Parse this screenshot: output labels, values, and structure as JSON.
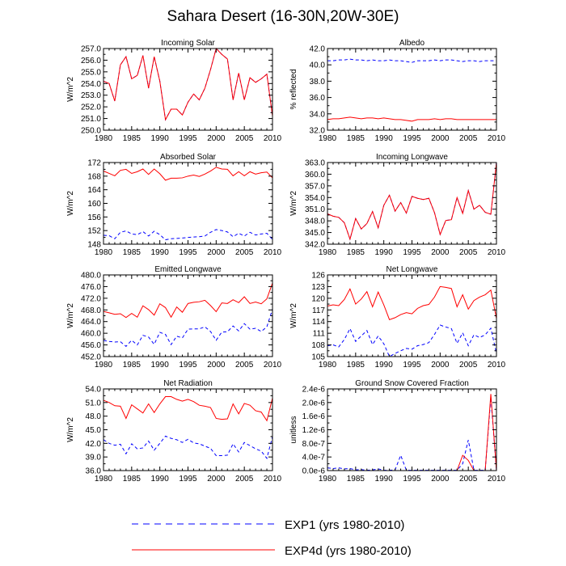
{
  "title": "Sahara Desert (16-30N,20W-30E)",
  "colors": {
    "exp1": "#0000ff",
    "exp4d": "#ff0000",
    "axis": "#000000"
  },
  "legend": [
    {
      "label": "EXP1 (yrs 1980-2010)",
      "style": "dashed",
      "color": "#0000ff"
    },
    {
      "label": "EXP4d (yrs 1980-2010)",
      "style": "solid",
      "color": "#ff0000"
    }
  ],
  "chart_data": [
    {
      "type": "line",
      "title": "Incoming Solar",
      "xlabel": "",
      "ylabel": "W/m^2",
      "xlim": [
        1980,
        2010
      ],
      "ylim": [
        250,
        257
      ],
      "xticks": [
        1980,
        1985,
        1990,
        1995,
        2000,
        2005,
        2010
      ],
      "yticks": [
        250,
        251,
        252,
        253,
        254,
        255,
        256,
        257
      ],
      "ytick_labels": [
        "250.0",
        "251.0",
        "252.0",
        "253.0",
        "254.0",
        "255.0",
        "256.0",
        "257.0"
      ],
      "x": [
        1980,
        1981,
        1982,
        1983,
        1984,
        1985,
        1986,
        1987,
        1988,
        1989,
        1990,
        1991,
        1992,
        1993,
        1994,
        1995,
        1996,
        1997,
        1998,
        1999,
        2000,
        2001,
        2002,
        2003,
        2004,
        2005,
        2006,
        2007,
        2008,
        2009,
        2010
      ],
      "series": [
        {
          "name": "EXP1",
          "values": [
            254.2,
            254.0,
            252.5,
            255.6,
            256.3,
            254.4,
            254.7,
            256.4,
            253.6,
            256.3,
            254.2,
            250.9,
            251.8,
            251.8,
            251.3,
            252.4,
            253.1,
            252.6,
            253.6,
            255.2,
            257.0,
            256.5,
            256.1,
            252.6,
            254.9,
            252.6,
            254.5,
            254.1,
            254.4,
            254.8,
            251.2
          ]
        },
        {
          "name": "EXP4d",
          "values": [
            254.2,
            254.0,
            252.5,
            255.6,
            256.3,
            254.4,
            254.7,
            256.4,
            253.6,
            256.3,
            254.2,
            250.9,
            251.8,
            251.8,
            251.3,
            252.4,
            253.1,
            252.6,
            253.6,
            255.2,
            257.0,
            256.5,
            256.1,
            252.6,
            254.9,
            252.6,
            254.5,
            254.1,
            254.4,
            254.8,
            251.2
          ]
        }
      ]
    },
    {
      "type": "line",
      "title": "Albedo",
      "xlabel": "",
      "ylabel": "% reflected",
      "xlim": [
        1980,
        2010
      ],
      "ylim": [
        32,
        42
      ],
      "xticks": [
        1980,
        1985,
        1990,
        1995,
        2000,
        2005,
        2010
      ],
      "yticks": [
        32,
        34,
        36,
        38,
        40,
        42
      ],
      "ytick_labels": [
        "32.0",
        "34.0",
        "36.0",
        "38.0",
        "40.0",
        "42.0"
      ],
      "x": [
        1980,
        1981,
        1982,
        1983,
        1984,
        1985,
        1986,
        1987,
        1988,
        1989,
        1990,
        1991,
        1992,
        1993,
        1994,
        1995,
        1996,
        1997,
        1998,
        1999,
        2000,
        2001,
        2002,
        2003,
        2004,
        2005,
        2006,
        2007,
        2008,
        2009,
        2010
      ],
      "series": [
        {
          "name": "EXP1",
          "values": [
            40.5,
            40.5,
            40.6,
            40.6,
            40.7,
            40.6,
            40.6,
            40.5,
            40.6,
            40.5,
            40.5,
            40.6,
            40.5,
            40.5,
            40.4,
            40.3,
            40.5,
            40.5,
            40.5,
            40.6,
            40.5,
            40.6,
            40.6,
            40.5,
            40.4,
            40.5,
            40.5,
            40.4,
            40.5,
            40.5,
            40.5
          ]
        },
        {
          "name": "EXP4d",
          "values": [
            33.3,
            33.4,
            33.4,
            33.5,
            33.6,
            33.5,
            33.4,
            33.5,
            33.5,
            33.4,
            33.5,
            33.4,
            33.3,
            33.3,
            33.2,
            33.1,
            33.3,
            33.3,
            33.3,
            33.4,
            33.3,
            33.4,
            33.4,
            33.3,
            33.3,
            33.3,
            33.3,
            33.3,
            33.3,
            33.3,
            33.3
          ]
        }
      ]
    },
    {
      "type": "line",
      "title": "Absorbed Solar",
      "xlabel": "",
      "ylabel": "W/m^2",
      "xlim": [
        1980,
        2010
      ],
      "ylim": [
        148,
        172
      ],
      "xticks": [
        1980,
        1985,
        1990,
        1995,
        2000,
        2005,
        2010
      ],
      "yticks": [
        148,
        152,
        156,
        160,
        164,
        168,
        172
      ],
      "ytick_labels": [
        "148",
        "152",
        "156",
        "160",
        "164",
        "168",
        "172"
      ],
      "x": [
        1980,
        1981,
        1982,
        1983,
        1984,
        1985,
        1986,
        1987,
        1988,
        1989,
        1990,
        1991,
        1992,
        1993,
        1994,
        1995,
        1996,
        1997,
        1998,
        1999,
        2000,
        2001,
        2002,
        2003,
        2004,
        2005,
        2006,
        2007,
        2008,
        2009,
        2010
      ],
      "series": [
        {
          "name": "EXP1",
          "values": [
            150.6,
            150.5,
            149.6,
            151.5,
            151.9,
            151.0,
            150.8,
            151.7,
            150.4,
            151.8,
            150.8,
            149.3,
            149.6,
            149.7,
            149.8,
            150.0,
            150.1,
            150.2,
            150.4,
            151.5,
            152.3,
            152.0,
            151.6,
            150.2,
            151.2,
            150.4,
            151.5,
            150.7,
            151.0,
            151.2,
            149.4
          ]
        },
        {
          "name": "EXP4d",
          "values": [
            169.5,
            168.8,
            168.1,
            169.7,
            170.0,
            168.8,
            169.3,
            170.1,
            168.5,
            170.1,
            168.7,
            166.8,
            167.4,
            167.4,
            167.5,
            168.0,
            168.3,
            167.9,
            168.6,
            169.5,
            170.6,
            170.1,
            170.0,
            168.1,
            169.3,
            168.1,
            169.3,
            168.6,
            169.0,
            169.2,
            167.5
          ]
        }
      ]
    },
    {
      "type": "line",
      "title": "Incoming Longwave",
      "xlabel": "",
      "ylabel": "W/m^2",
      "xlim": [
        1980,
        2010
      ],
      "ylim": [
        342,
        363
      ],
      "xticks": [
        1980,
        1985,
        1990,
        1995,
        2000,
        2005,
        2010
      ],
      "yticks": [
        342,
        345,
        348,
        351,
        354,
        357,
        360,
        363
      ],
      "ytick_labels": [
        "342.0",
        "345.0",
        "348.0",
        "351.0",
        "354.0",
        "357.0",
        "360.0",
        "363.0"
      ],
      "x": [
        1980,
        1981,
        1982,
        1983,
        1984,
        1985,
        1986,
        1987,
        1988,
        1989,
        1990,
        1991,
        1992,
        1993,
        1994,
        1995,
        1996,
        1997,
        1998,
        1999,
        2000,
        2001,
        2002,
        2003,
        2004,
        2005,
        2006,
        2007,
        2008,
        2009,
        2010
      ],
      "series": [
        {
          "name": "EXP1",
          "values": [
            349.8,
            349.2,
            348.9,
            347.5,
            343.3,
            348.6,
            345.9,
            347.3,
            350.4,
            346.2,
            352.0,
            354.6,
            350.5,
            352.7,
            350.0,
            354.3,
            353.8,
            353.5,
            353.8,
            350.1,
            344.5,
            348.1,
            348.3,
            354.0,
            349.9,
            355.8,
            351.0,
            352.0,
            350.2,
            349.7,
            363.0
          ]
        },
        {
          "name": "EXP4d",
          "values": [
            349.8,
            349.2,
            348.9,
            347.5,
            343.3,
            348.6,
            345.9,
            347.3,
            350.4,
            346.2,
            352.0,
            354.6,
            350.5,
            352.7,
            350.0,
            354.3,
            353.8,
            353.5,
            353.8,
            350.1,
            344.5,
            348.1,
            348.3,
            354.0,
            349.9,
            355.8,
            351.0,
            352.0,
            350.2,
            349.7,
            363.0
          ]
        }
      ]
    },
    {
      "type": "line",
      "title": "Emitted Longwave",
      "xlabel": "",
      "ylabel": "W/m^2",
      "xlim": [
        1980,
        2010
      ],
      "ylim": [
        452,
        480
      ],
      "xticks": [
        1980,
        1985,
        1990,
        1995,
        2000,
        2005,
        2010
      ],
      "yticks": [
        452,
        456,
        460,
        464,
        468,
        472,
        476,
        480
      ],
      "ytick_labels": [
        "452.0",
        "456.0",
        "460.0",
        "464.0",
        "468.0",
        "472.0",
        "476.0",
        "480.0"
      ],
      "x": [
        1980,
        1981,
        1982,
        1983,
        1984,
        1985,
        1986,
        1987,
        1988,
        1989,
        1990,
        1991,
        1992,
        1993,
        1994,
        1995,
        1996,
        1997,
        1998,
        1999,
        2000,
        2001,
        2002,
        2003,
        2004,
        2005,
        2006,
        2007,
        2008,
        2009,
        2010
      ],
      "series": [
        {
          "name": "EXP1",
          "values": [
            457.5,
            457.2,
            457.0,
            457.1,
            455.5,
            457.6,
            456.0,
            459.3,
            458.7,
            456.2,
            460.3,
            459.6,
            456.1,
            459.0,
            458.4,
            461.4,
            461.5,
            461.5,
            462.2,
            460.6,
            457.6,
            460.4,
            460.5,
            462.5,
            460.8,
            463.3,
            461.4,
            461.7,
            460.6,
            462.2,
            468.3
          ]
        },
        {
          "name": "EXP4d",
          "values": [
            467.5,
            467.0,
            466.5,
            466.7,
            465.4,
            466.8,
            465.5,
            469.4,
            468.1,
            466.2,
            470.1,
            468.8,
            465.5,
            469.0,
            467.2,
            470.2,
            470.6,
            470.8,
            471.3,
            469.5,
            467.4,
            470.4,
            470.2,
            471.5,
            470.5,
            472.5,
            470.2,
            470.7,
            470.1,
            471.8,
            477.2
          ]
        }
      ]
    },
    {
      "type": "line",
      "title": "Net Longwave",
      "xlabel": "",
      "ylabel": "W/m^2",
      "xlim": [
        1980,
        2010
      ],
      "ylim": [
        105,
        126
      ],
      "xticks": [
        1980,
        1985,
        1990,
        1995,
        2000,
        2005,
        2010
      ],
      "yticks": [
        105,
        108,
        111,
        114,
        117,
        120,
        123,
        126
      ],
      "ytick_labels": [
        "105",
        "108",
        "111",
        "114",
        "117",
        "120",
        "123",
        "126"
      ],
      "x": [
        1980,
        1981,
        1982,
        1983,
        1984,
        1985,
        1986,
        1987,
        1988,
        1989,
        1990,
        1991,
        1992,
        1993,
        1994,
        1995,
        1996,
        1997,
        1998,
        1999,
        2000,
        2001,
        2002,
        2003,
        2004,
        2005,
        2006,
        2007,
        2008,
        2009,
        2010
      ],
      "series": [
        {
          "name": "EXP1",
          "values": [
            107.8,
            108.0,
            107.5,
            109.4,
            112.2,
            108.9,
            110.3,
            111.7,
            108.1,
            110.3,
            108.3,
            105.0,
            105.8,
            106.5,
            107.1,
            106.9,
            107.8,
            108.1,
            108.6,
            110.7,
            113.1,
            112.6,
            112.2,
            108.4,
            111.1,
            107.8,
            110.6,
            109.9,
            110.6,
            112.3,
            105.8
          ]
        },
        {
          "name": "EXP4d",
          "values": [
            118.0,
            118.3,
            118.1,
            119.7,
            122.4,
            118.5,
            119.8,
            121.7,
            117.8,
            121.6,
            118.3,
            114.5,
            115.0,
            115.8,
            116.3,
            116.0,
            117.4,
            118.1,
            118.4,
            120.3,
            123.0,
            122.8,
            122.5,
            117.8,
            120.9,
            117.2,
            119.4,
            120.3,
            120.9,
            122.1,
            114.8
          ]
        }
      ]
    },
    {
      "type": "line",
      "title": "Net Radiation",
      "xlabel": "",
      "ylabel": "W/m^2",
      "xlim": [
        1980,
        2010
      ],
      "ylim": [
        36,
        54
      ],
      "xticks": [
        1980,
        1985,
        1990,
        1995,
        2000,
        2005,
        2010
      ],
      "yticks": [
        36,
        39,
        42,
        45,
        48,
        51,
        54
      ],
      "ytick_labels": [
        "36.0",
        "39.0",
        "42.0",
        "45.0",
        "48.0",
        "51.0",
        "54.0"
      ],
      "x": [
        1980,
        1981,
        1982,
        1983,
        1984,
        1985,
        1986,
        1987,
        1988,
        1989,
        1990,
        1991,
        1992,
        1993,
        1994,
        1995,
        1996,
        1997,
        1998,
        1999,
        2000,
        2001,
        2002,
        2003,
        2004,
        2005,
        2006,
        2007,
        2008,
        2009,
        2010
      ],
      "series": [
        {
          "name": "EXP1",
          "values": [
            42.8,
            42.0,
            41.6,
            41.8,
            39.7,
            41.9,
            40.8,
            41.0,
            42.5,
            40.5,
            42.0,
            43.6,
            43.1,
            42.8,
            42.2,
            42.9,
            42.1,
            41.9,
            41.4,
            40.9,
            39.3,
            39.3,
            39.4,
            41.9,
            40.1,
            42.2,
            41.5,
            40.8,
            40.3,
            38.7,
            43.5
          ]
        },
        {
          "name": "EXP4d",
          "values": [
            51.5,
            51.0,
            50.3,
            50.2,
            47.5,
            50.5,
            49.6,
            48.7,
            50.7,
            48.8,
            50.7,
            52.3,
            52.3,
            51.7,
            51.3,
            51.7,
            51.2,
            50.4,
            50.2,
            49.9,
            47.5,
            47.3,
            47.4,
            50.7,
            48.5,
            50.8,
            50.4,
            49.2,
            48.9,
            47.0,
            52.0
          ]
        }
      ]
    },
    {
      "type": "line",
      "title": "Ground Snow Covered Fraction",
      "xlabel": "",
      "ylabel": "unitless",
      "xlim": [
        1980,
        2010
      ],
      "ylim": [
        0,
        2.4e-06
      ],
      "xticks": [
        1980,
        1985,
        1990,
        1995,
        2000,
        2005,
        2010
      ],
      "yticks": [
        0,
        4e-07,
        8e-07,
        1.2e-06,
        1.6e-06,
        2e-06,
        2.4e-06
      ],
      "ytick_labels": [
        "0.0e-6",
        "4.0e-7",
        "8.0e-7",
        "1.2e-6",
        "1.6e-6",
        "2.0e-6",
        "2.4e-6"
      ],
      "x": [
        1980,
        1981,
        1982,
        1983,
        1984,
        1985,
        1986,
        1987,
        1988,
        1989,
        1990,
        1991,
        1992,
        1993,
        1994,
        1995,
        1996,
        1997,
        1998,
        1999,
        2000,
        2001,
        2002,
        2003,
        2004,
        2005,
        2006,
        2007,
        2008,
        2009,
        2010
      ],
      "series": [
        {
          "name": "EXP1",
          "values": [
            8e-08,
            6e-08,
            8e-08,
            5e-08,
            6e-08,
            2e-08,
            3e-08,
            1e-08,
            2e-08,
            5e-08,
            1e-08,
            1e-08,
            2e-08,
            4.5e-07,
            1e-08,
            1e-08,
            1e-08,
            1e-08,
            1e-08,
            1e-08,
            1e-08,
            1e-08,
            1e-08,
            1e-08,
            2e-07,
            9e-07,
            1e-08,
            1e-08,
            1e-08,
            2.15e-06,
            1e-08
          ]
        },
        {
          "name": "EXP4d",
          "values": [
            0,
            0,
            0,
            0,
            0,
            0,
            0,
            0,
            0,
            0,
            0,
            0,
            0,
            0,
            0,
            0,
            0,
            0,
            0,
            0,
            0,
            0,
            0,
            0,
            4.5e-07,
            3e-07,
            0,
            0,
            0,
            2.25e-06,
            0
          ]
        }
      ]
    }
  ]
}
